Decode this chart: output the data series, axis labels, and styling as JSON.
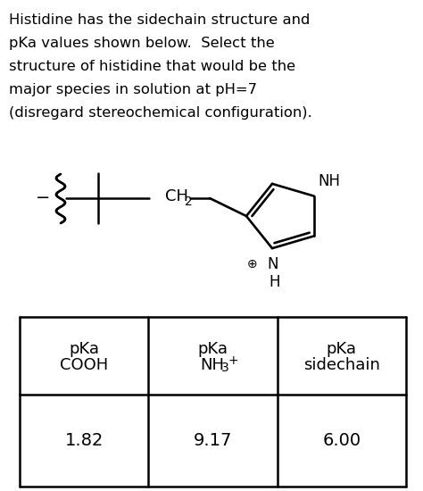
{
  "bg_color": "#ffffff",
  "para_text_line1": "Histidine has the sidechain structure and",
  "para_text_line2": "pKa values shown below.  Select the",
  "para_text_line3": "structure of histidine that would be the",
  "para_text_line4": "major species in solution at pH=7",
  "para_text_line5": "(disregard stereochemical configuration).",
  "table_col1_h1": "pKa",
  "table_col1_h2": "COOH",
  "table_col2_h1": "pKa",
  "table_col2_h2": "NH",
  "table_col2_h2_sub": "3",
  "table_col2_h2_sup": "+",
  "table_col3_h1": "pKa",
  "table_col3_h2": "sidechain",
  "table_val1": "1.82",
  "table_val2": "9.17",
  "table_val3": "6.00",
  "font_size_para": 11.8,
  "font_size_table_h": 13.0,
  "font_size_table_v": 14.0,
  "font_size_struct": 12.0
}
